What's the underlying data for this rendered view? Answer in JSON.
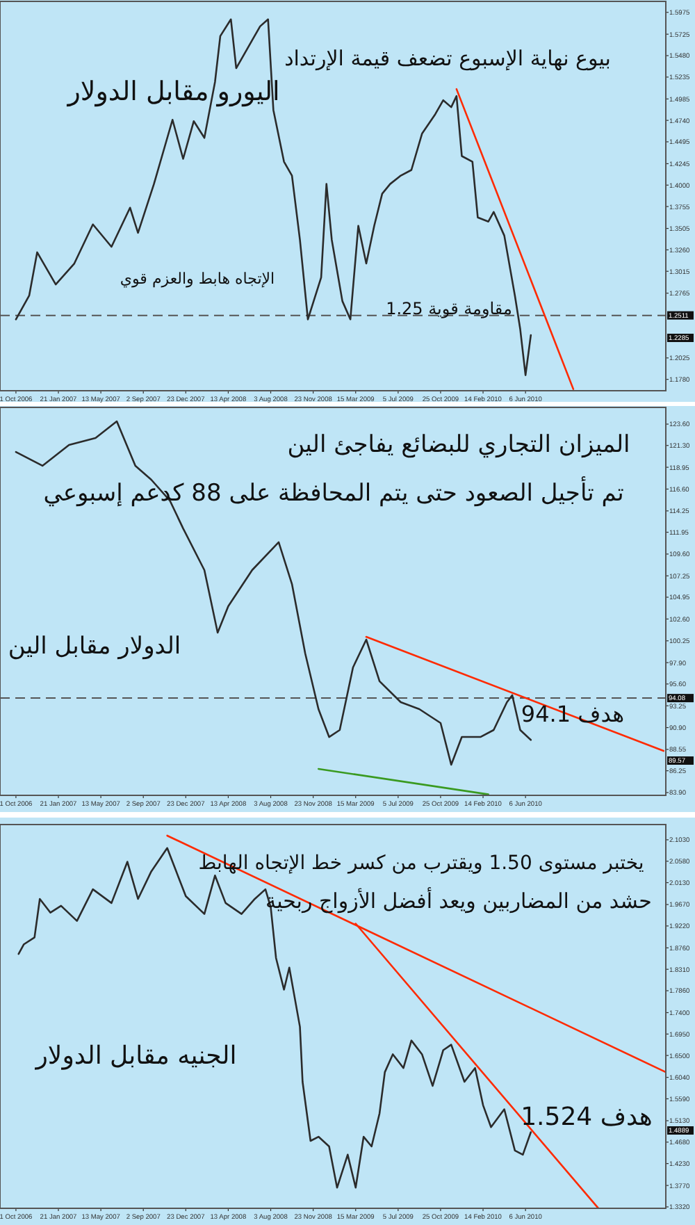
{
  "chart_data": [
    {
      "type": "line",
      "title": "اليورو مقابل الدولار",
      "xlim": [
        "2006-08-20",
        "2011-06-11"
      ],
      "xticks": [
        {
          "value": "2006-10-01",
          "label": "1 Oct 2006"
        },
        {
          "value": "2007-01-21",
          "label": "21 Jan 2007"
        },
        {
          "value": "2007-05-13",
          "label": "13 May 2007"
        },
        {
          "value": "2007-09-02",
          "label": "2 Sep 2007"
        },
        {
          "value": "2007-12-23",
          "label": "23 Dec 2007"
        },
        {
          "value": "2008-04-13",
          "label": "13 Apr 2008"
        },
        {
          "value": "2008-08-03",
          "label": "3 Aug 2008"
        },
        {
          "value": "2008-11-23",
          "label": "23 Nov 2008"
        },
        {
          "value": "2009-03-15",
          "label": "15 Mar 2009"
        },
        {
          "value": "2009-07-05",
          "label": "5 Jul 2009"
        },
        {
          "value": "2009-10-25",
          "label": "25 Oct 2009"
        },
        {
          "value": "2010-02-14",
          "label": "14 Feb 2010"
        },
        {
          "value": "2010-06-06",
          "label": "6 Jun 2010"
        }
      ],
      "ylim": [
        1.165,
        1.61
      ],
      "yticks": [
        {
          "value": 1.178,
          "label": "1.1780"
        },
        {
          "value": 1.2025,
          "label": "1.2025"
        },
        {
          "value": 1.2765,
          "label": "1.2765"
        },
        {
          "value": 1.3015,
          "label": "1.3015"
        },
        {
          "value": 1.326,
          "label": "1.3260"
        },
        {
          "value": 1.3505,
          "label": "1.3505"
        },
        {
          "value": 1.3755,
          "label": "1.3755"
        },
        {
          "value": 1.4,
          "label": "1.4000"
        },
        {
          "value": 1.4245,
          "label": "1.4245"
        },
        {
          "value": 1.4495,
          "label": "1.4495"
        },
        {
          "value": 1.474,
          "label": "1.4740"
        },
        {
          "value": 1.4985,
          "label": "1.4985"
        },
        {
          "value": 1.5235,
          "label": "1.5235"
        },
        {
          "value": 1.548,
          "label": "1.5480"
        },
        {
          "value": 1.5725,
          "label": "1.5725"
        },
        {
          "value": 1.5975,
          "label": "1.5975"
        }
      ],
      "series": [
        {
          "type": "line",
          "color": "#2b2b2b",
          "x": [
            "2006-10-01",
            "2006-11-05",
            "2006-11-26",
            "2007-01-14",
            "2007-03-04",
            "2007-04-22",
            "2007-06-10",
            "2007-07-29",
            "2007-08-19",
            "2007-09-30",
            "2007-11-18",
            "2007-12-16",
            "2008-01-13",
            "2008-02-10",
            "2008-03-09",
            "2008-03-23",
            "2008-04-20",
            "2008-05-04",
            "2008-06-15",
            "2008-07-06",
            "2008-07-27",
            "2008-08-10",
            "2008-09-07",
            "2008-09-28",
            "2008-10-19",
            "2008-11-09",
            "2008-12-14",
            "2008-12-28",
            "2009-01-11",
            "2009-02-08",
            "2009-03-01",
            "2009-03-22",
            "2009-04-12",
            "2009-05-03",
            "2009-05-24",
            "2009-06-14",
            "2009-07-12",
            "2009-08-09",
            "2009-09-06",
            "2009-10-11",
            "2009-11-01",
            "2009-11-22",
            "2009-12-06",
            "2009-12-20",
            "2010-01-17",
            "2010-01-31",
            "2010-02-28",
            "2010-03-14",
            "2010-04-11",
            "2010-05-09",
            "2010-05-23",
            "2010-06-06",
            "2010-06-20"
          ],
          "values": [
            1.2466,
            1.2737,
            1.3232,
            1.2864,
            1.3104,
            1.3551,
            1.3295,
            1.3742,
            1.3455,
            1.4013,
            1.4747,
            1.43,
            1.4731,
            1.454,
            1.5178,
            1.5704,
            1.5895,
            1.5337,
            1.5656,
            1.5815,
            1.5895,
            1.4859,
            1.4268,
            1.4109,
            1.3375,
            1.2466,
            1.2945,
            1.4013,
            1.3375,
            1.2674,
            1.2466,
            1.3535,
            1.3104,
            1.3535,
            1.3902,
            1.4013,
            1.4109,
            1.4173,
            1.4588,
            1.4811,
            1.497,
            1.4891,
            1.5018,
            1.4332,
            1.4268,
            1.3631,
            1.3583,
            1.3694,
            1.3423,
            1.2737,
            1.2355,
            1.1828,
            1.2285
          ]
        },
        {
          "type": "line",
          "color": "#ff2a00",
          "x": [
            "2009-12-06",
            "2010-10-10"
          ],
          "values": [
            1.5098,
            1.1669
          ]
        }
      ],
      "ref_lines": [
        {
          "axis": "y",
          "value": 1.2511,
          "label": "1.2511",
          "color": "#555555",
          "line_style": "dashed"
        }
      ],
      "annotations": [
        "بيوع نهاية الإسبوع تضعف قيمة الإرتداد",
        "الإتجاه هابط والعزم قوي",
        "مقاومة قوية 1.25",
        "1.2285"
      ]
    },
    {
      "type": "line",
      "title": "الدولار مقابل الين",
      "xlim": [
        "2006-08-20",
        "2011-06-11"
      ],
      "xticks": [
        {
          "value": "2006-10-01",
          "label": "1 Oct 2006"
        },
        {
          "value": "2007-01-21",
          "label": "21 Jan 2007"
        },
        {
          "value": "2007-05-13",
          "label": "13 May 2007"
        },
        {
          "value": "2007-09-02",
          "label": "2 Sep 2007"
        },
        {
          "value": "2007-12-23",
          "label": "23 Dec 2007"
        },
        {
          "value": "2008-04-13",
          "label": "13 Apr 2008"
        },
        {
          "value": "2008-08-03",
          "label": "3 Aug 2008"
        },
        {
          "value": "2008-11-23",
          "label": "23 Nov 2008"
        },
        {
          "value": "2009-03-15",
          "label": "15 Mar 2009"
        },
        {
          "value": "2009-07-05",
          "label": "5 Jul 2009"
        },
        {
          "value": "2009-10-25",
          "label": "25 Oct 2009"
        },
        {
          "value": "2010-02-14",
          "label": "14 Feb 2010"
        },
        {
          "value": "2010-06-06",
          "label": "6 Jun 2010"
        }
      ],
      "ylim": [
        83.6,
        125.4
      ],
      "yticks": [
        {
          "value": 83.9,
          "label": "83.90"
        },
        {
          "value": 86.25,
          "label": "86.25"
        },
        {
          "value": 88.55,
          "label": "88.55"
        },
        {
          "value": 90.9,
          "label": "90.90"
        },
        {
          "value": 93.25,
          "label": "93.25"
        },
        {
          "value": 95.6,
          "label": "95.60"
        },
        {
          "value": 97.9,
          "label": "97.90"
        },
        {
          "value": 100.25,
          "label": "100.25"
        },
        {
          "value": 102.6,
          "label": "102.60"
        },
        {
          "value": 104.95,
          "label": "104.95"
        },
        {
          "value": 107.25,
          "label": "107.25"
        },
        {
          "value": 109.6,
          "label": "109.60"
        },
        {
          "value": 111.95,
          "label": "111.95"
        },
        {
          "value": 114.25,
          "label": "114.25"
        },
        {
          "value": 116.6,
          "label": "116.60"
        },
        {
          "value": 118.95,
          "label": "118.95"
        },
        {
          "value": 121.3,
          "label": "121.30"
        },
        {
          "value": 123.6,
          "label": "123.60"
        }
      ],
      "series": [
        {
          "type": "line",
          "color": "#2b2b2b",
          "x": [
            "2006-10-01",
            "2006-12-10",
            "2007-02-18",
            "2007-04-29",
            "2007-06-24",
            "2007-08-12",
            "2007-09-23",
            "2007-11-11",
            "2007-12-16",
            "2008-02-10",
            "2008-03-16",
            "2008-04-13",
            "2008-06-15",
            "2008-08-24",
            "2008-09-28",
            "2008-11-02",
            "2008-12-07",
            "2009-01-04",
            "2009-02-01",
            "2009-03-08",
            "2009-04-12",
            "2009-05-17",
            "2009-07-12",
            "2009-08-30",
            "2009-10-25",
            "2009-11-22",
            "2009-12-20",
            "2010-02-07",
            "2010-03-14",
            "2010-04-18",
            "2010-05-02",
            "2010-05-23",
            "2010-06-20"
          ],
          "values": [
            120.6,
            119.11,
            121.35,
            122.1,
            123.9,
            119.11,
            117.61,
            115.36,
            112.36,
            107.87,
            101.13,
            103.97,
            107.87,
            110.87,
            106.37,
            98.88,
            92.89,
            89.89,
            90.64,
            97.38,
            100.38,
            95.89,
            93.64,
            92.89,
            91.39,
            86.9,
            89.89,
            89.89,
            90.64,
            93.64,
            94.39,
            90.64,
            89.57
          ]
        },
        {
          "type": "line",
          "color": "#ff2a00",
          "x": [
            "2009-04-12",
            "2011-06-05"
          ],
          "values": [
            100.68,
            88.39
          ]
        },
        {
          "type": "line",
          "color": "#3a9a20",
          "x": [
            "2008-12-07",
            "2010-02-28"
          ],
          "values": [
            86.45,
            83.7
          ]
        }
      ],
      "ref_lines": [
        {
          "axis": "y",
          "value": 94.08,
          "label": "94.08",
          "color": "#555555",
          "line_style": "dashed"
        }
      ],
      "annotations": [
        "الميزان التجاري للبضائع يفاجئ الين",
        "تم تأجيل الصعود حتى يتم المحافظة على 88 كدعم إسبوعي",
        "هدف 94.1",
        "89.57"
      ]
    },
    {
      "type": "line",
      "title": "الجنيه مقابل الدولار",
      "xlim": [
        "2006-08-20",
        "2011-06-11"
      ],
      "xticks": [
        {
          "value": "2006-10-01",
          "label": "1 Oct 2006"
        },
        {
          "value": "2007-01-21",
          "label": "21 Jan 2007"
        },
        {
          "value": "2007-05-13",
          "label": "13 May 2007"
        },
        {
          "value": "2007-09-02",
          "label": "2 Sep 2007"
        },
        {
          "value": "2007-12-23",
          "label": "23 Dec 2007"
        },
        {
          "value": "2008-04-13",
          "label": "13 Apr 2008"
        },
        {
          "value": "2008-08-03",
          "label": "3 Aug 2008"
        },
        {
          "value": "2008-11-23",
          "label": "23 Nov 2008"
        },
        {
          "value": "2009-03-15",
          "label": "15 Mar 2009"
        },
        {
          "value": "2009-07-05",
          "label": "5 Jul 2009"
        },
        {
          "value": "2009-10-25",
          "label": "25 Oct 2009"
        },
        {
          "value": "2010-02-14",
          "label": "14 Feb 2010"
        },
        {
          "value": "2010-06-06",
          "label": "6 Jun 2010"
        }
      ],
      "ylim": [
        1.329,
        2.135
      ],
      "yticks": [
        {
          "value": 1.332,
          "label": "1.3320"
        },
        {
          "value": 1.377,
          "label": "1.3770"
        },
        {
          "value": 1.423,
          "label": "1.4230"
        },
        {
          "value": 1.468,
          "label": "1.4680"
        },
        {
          "value": 1.513,
          "label": "1.5130"
        },
        {
          "value": 1.559,
          "label": "1.5590"
        },
        {
          "value": 1.604,
          "label": "1.6040"
        },
        {
          "value": 1.65,
          "label": "1.6500"
        },
        {
          "value": 1.695,
          "label": "1.6950"
        },
        {
          "value": 1.74,
          "label": "1.7400"
        },
        {
          "value": 1.786,
          "label": "1.7860"
        },
        {
          "value": 1.831,
          "label": "1.8310"
        },
        {
          "value": 1.876,
          "label": "1.8760"
        },
        {
          "value": 1.922,
          "label": "1.9220"
        },
        {
          "value": 1.967,
          "label": "1.9670"
        },
        {
          "value": 2.013,
          "label": "2.0130"
        },
        {
          "value": 2.058,
          "label": "2.0580"
        },
        {
          "value": 2.103,
          "label": "2.1030"
        }
      ],
      "series": [
        {
          "type": "line",
          "color": "#2b2b2b",
          "x": [
            "2006-10-08",
            "2006-10-22",
            "2006-11-19",
            "2006-12-03",
            "2006-12-31",
            "2007-01-28",
            "2007-03-11",
            "2007-04-22",
            "2007-06-10",
            "2007-07-22",
            "2007-08-19",
            "2007-09-23",
            "2007-11-04",
            "2007-11-18",
            "2007-12-23",
            "2008-02-10",
            "2008-03-09",
            "2008-04-06",
            "2008-05-18",
            "2008-06-22",
            "2008-07-20",
            "2008-08-03",
            "2008-08-17",
            "2008-09-07",
            "2008-09-21",
            "2008-10-19",
            "2008-10-26",
            "2008-11-16",
            "2008-12-07",
            "2009-01-04",
            "2009-01-25",
            "2009-02-22",
            "2009-03-15",
            "2009-04-05",
            "2009-04-26",
            "2009-05-17",
            "2009-05-31",
            "2009-06-21",
            "2009-07-19",
            "2009-08-09",
            "2009-09-06",
            "2009-10-04",
            "2009-11-01",
            "2009-11-22",
            "2009-12-27",
            "2010-01-24",
            "2010-02-14",
            "2010-03-07",
            "2010-04-11",
            "2010-05-09",
            "2010-05-30",
            "2010-06-20"
          ],
          "values": [
            1.8633,
            1.8835,
            1.898,
            1.9788,
            1.95,
            1.9644,
            1.9326,
            1.999,
            1.9702,
            2.0568,
            1.9788,
            2.0366,
            2.0857,
            2.0568,
            1.9846,
            1.9471,
            2.0279,
            1.9702,
            1.9471,
            1.9788,
            1.999,
            1.9615,
            1.8547,
            1.7883,
            1.8345,
            1.7103,
            1.5948,
            1.4706,
            1.4793,
            1.459,
            1.3724,
            1.4417,
            1.3724,
            1.4793,
            1.459,
            1.5284,
            1.615,
            1.6525,
            1.6237,
            1.6814,
            1.6525,
            1.5861,
            1.6612,
            1.6727,
            1.5948,
            1.6237,
            1.5457,
            1.4995,
            1.537,
            1.4504,
            1.4417,
            1.4889
          ]
        },
        {
          "type": "line",
          "color": "#ff2a00",
          "x": [
            "2007-11-04",
            "2011-06-11"
          ],
          "values": [
            2.1117,
            1.615
          ]
        },
        {
          "type": "line",
          "color": "#ff2a00",
          "x": [
            "2009-03-15",
            "2010-12-15"
          ],
          "values": [
            1.9269,
            1.3291
          ]
        }
      ],
      "annotations": [
        "يختبر مستوى 1.50 ويقترب من كسر خط الإتجاه الهابط",
        "حشد من المضاربين ويعد أفضل الأزواج ربحية",
        "هدف 1.524",
        "1.4889"
      ]
    }
  ]
}
